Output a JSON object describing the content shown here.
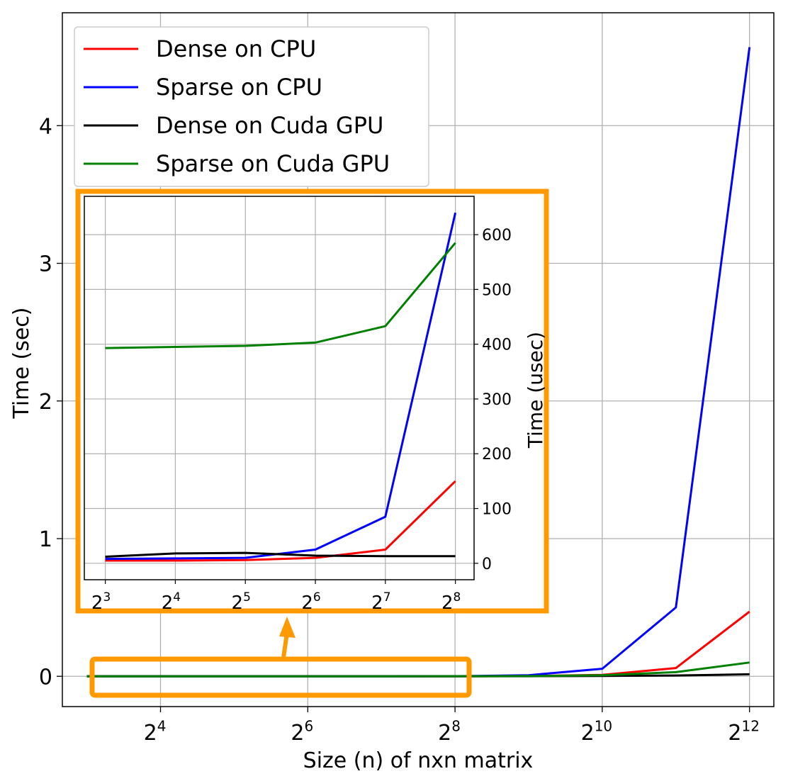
{
  "chart_data": [
    {
      "type": "line",
      "xlabel": "Size (n) of nxn matrix",
      "ylabel": "Time (sec)",
      "x_scale": "log2",
      "x": [
        8,
        16,
        32,
        64,
        128,
        256,
        512,
        1024,
        2048,
        4096
      ],
      "x_ticks": [
        {
          "value": 16,
          "base": "2",
          "exp": "4"
        },
        {
          "value": 64,
          "base": "2",
          "exp": "6"
        },
        {
          "value": 256,
          "base": "2",
          "exp": "8"
        },
        {
          "value": 1024,
          "base": "2",
          "exp": "10"
        },
        {
          "value": 4096,
          "base": "2",
          "exp": "12"
        }
      ],
      "y_ticks": [
        0,
        1,
        2,
        3,
        4
      ],
      "ylim": [
        -0.22,
        4.82
      ],
      "grid": true,
      "legend_position": "top-left",
      "series": [
        {
          "name": "Dense on CPU",
          "color": "#ff0000",
          "values": [
            0.0,
            0.0,
            0.0,
            0.0,
            0.0,
            0.0002,
            0.002,
            0.01,
            0.06,
            0.47
          ]
        },
        {
          "name": "Sparse on CPU",
          "color": "#0000ff",
          "values": [
            0.0,
            0.0,
            0.0,
            0.0,
            0.0001,
            0.0006,
            0.008,
            0.055,
            0.5,
            4.57
          ]
        },
        {
          "name": "Dense on Cuda GPU",
          "color": "#000000",
          "values": [
            0.0,
            0.0,
            0.0,
            0.0,
            0.0,
            0.0,
            0.001,
            0.003,
            0.006,
            0.015
          ]
        },
        {
          "name": "Sparse on Cuda GPU",
          "color": "#008000",
          "values": [
            0.0004,
            0.0004,
            0.0004,
            0.0004,
            0.0004,
            0.0006,
            0.002,
            0.008,
            0.03,
            0.1
          ]
        }
      ]
    },
    {
      "type": "line",
      "ylabel": "Time (usec)",
      "x_scale": "log2",
      "x": [
        8,
        16,
        32,
        64,
        128,
        256
      ],
      "x_ticks": [
        {
          "value": 8,
          "base": "2",
          "exp": "3"
        },
        {
          "value": 16,
          "base": "2",
          "exp": "4"
        },
        {
          "value": 32,
          "base": "2",
          "exp": "5"
        },
        {
          "value": 64,
          "base": "2",
          "exp": "6"
        },
        {
          "value": 128,
          "base": "2",
          "exp": "7"
        },
        {
          "value": 256,
          "base": "2",
          "exp": "8"
        }
      ],
      "y_ticks": [
        0,
        100,
        200,
        300,
        400,
        500,
        600
      ],
      "ylim": [
        -30,
        670
      ],
      "grid": true,
      "y_axis_side": "right",
      "series": [
        {
          "name": "Dense on CPU",
          "color": "#ff0000",
          "values": [
            5,
            5,
            6,
            10,
            25,
            150
          ]
        },
        {
          "name": "Sparse on CPU",
          "color": "#0000ff",
          "values": [
            8,
            9,
            10,
            25,
            85,
            640
          ]
        },
        {
          "name": "Dense on Cuda GPU",
          "color": "#000000",
          "values": [
            12,
            18,
            19,
            14,
            13,
            13
          ]
        },
        {
          "name": "Sparse on Cuda GPU",
          "color": "#008000",
          "values": [
            393,
            395,
            397,
            403,
            433,
            585
          ]
        }
      ]
    }
  ],
  "colors": {
    "highlight": "#ff9900"
  }
}
